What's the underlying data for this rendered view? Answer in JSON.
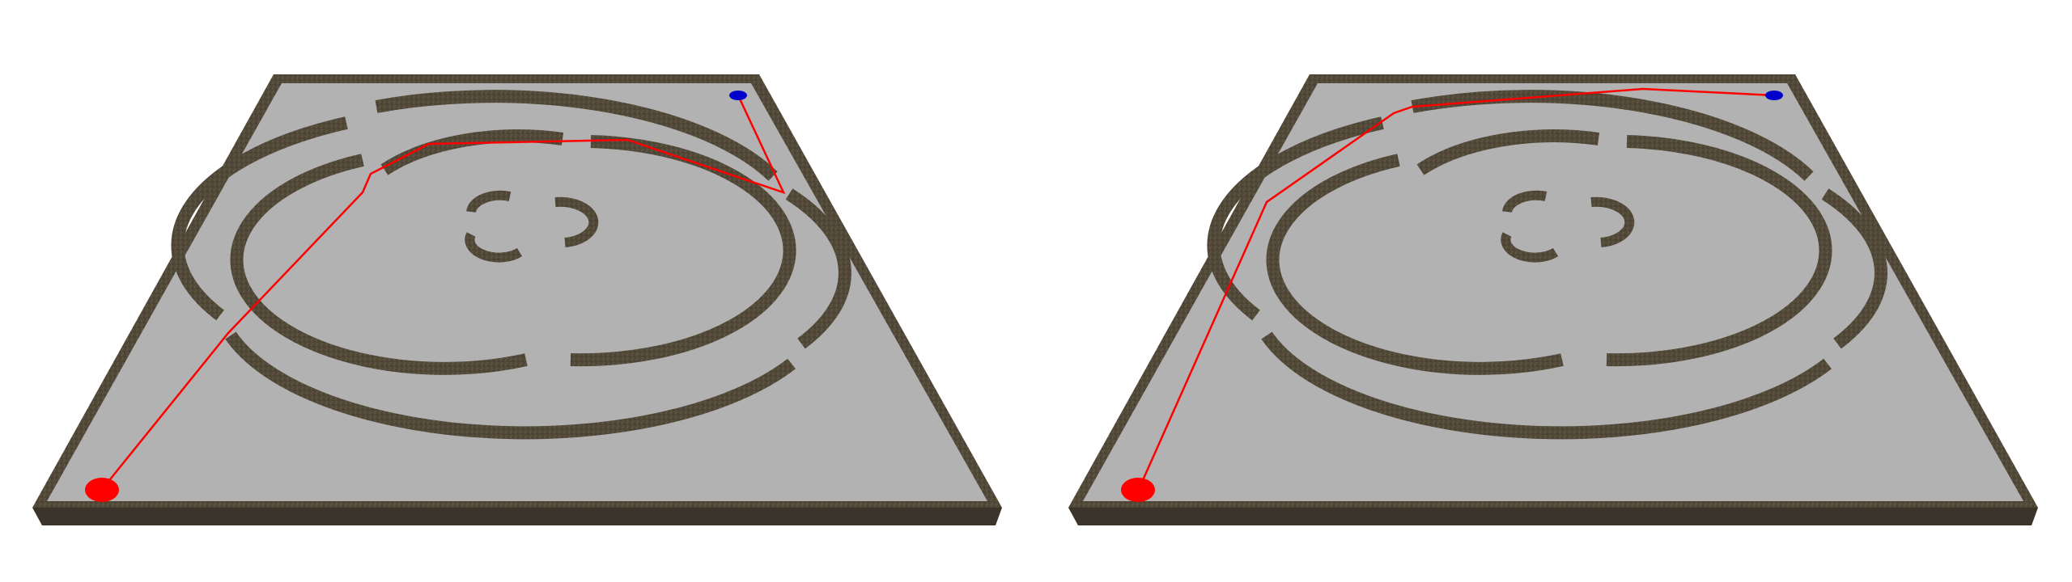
{
  "scene": {
    "view_count": 2,
    "floor_color": "#b2b2b2",
    "wall_color": "#4e4538",
    "path_color": "#ff0000",
    "start_marker": "red-ellipse-start",
    "goal_marker": "blue-ellipse-goal",
    "panels": [
      {
        "name": "maze-view-left",
        "path_style": "jagged-multi-segment"
      },
      {
        "name": "maze-view-right",
        "path_style": "smooth-direct"
      }
    ],
    "colors": {
      "start": "#ff0000",
      "goal": "#0000cc"
    }
  }
}
